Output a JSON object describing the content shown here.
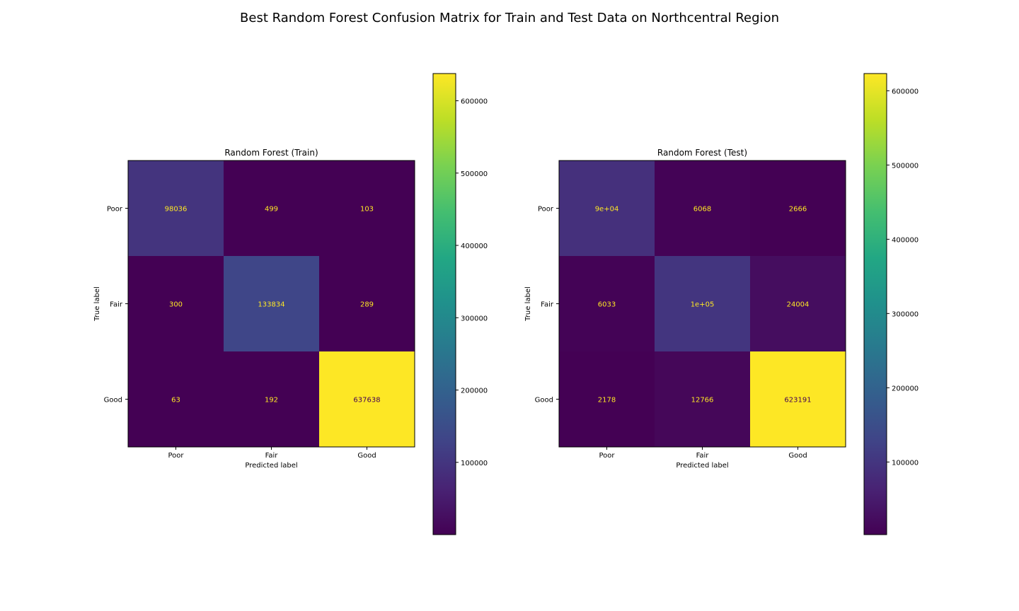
{
  "figure": {
    "suptitle": "Best Random Forest Confusion Matrix for Train and Test Data on Northcentral Region"
  },
  "chart_data": [
    {
      "type": "heatmap",
      "title": "Random Forest (Train)",
      "xlabel": "Predicted label",
      "ylabel": "True label",
      "x_categories": [
        "Poor",
        "Fair",
        "Good"
      ],
      "y_categories": [
        "Poor",
        "Fair",
        "Good"
      ],
      "values": [
        [
          98036,
          499,
          103
        ],
        [
          300,
          133834,
          289
        ],
        [
          63,
          192,
          637638
        ]
      ],
      "cell_labels": [
        [
          "98036",
          "499",
          "103"
        ],
        [
          "300",
          "133834",
          "289"
        ],
        [
          "63",
          "192",
          "637638"
        ]
      ],
      "colormap": "viridis",
      "colorbar": {
        "min": 63,
        "max": 637638,
        "ticks": [
          100000,
          200000,
          300000,
          400000,
          500000,
          600000
        ]
      }
    },
    {
      "type": "heatmap",
      "title": "Random Forest (Test)",
      "xlabel": "Predicted label",
      "ylabel": "True label",
      "x_categories": [
        "Poor",
        "Fair",
        "Good"
      ],
      "y_categories": [
        "Poor",
        "Fair",
        "Good"
      ],
      "values": [
        [
          90000,
          6068,
          2666
        ],
        [
          6033,
          100000,
          24004
        ],
        [
          2178,
          12766,
          623191
        ]
      ],
      "cell_labels": [
        [
          "9e+04",
          "6068",
          "2666"
        ],
        [
          "6033",
          "1e+05",
          "24004"
        ],
        [
          "2178",
          "12766",
          "623191"
        ]
      ],
      "colormap": "viridis",
      "colorbar": {
        "min": 2178,
        "max": 623191,
        "ticks": [
          100000,
          200000,
          300000,
          400000,
          500000,
          600000
        ]
      }
    }
  ]
}
